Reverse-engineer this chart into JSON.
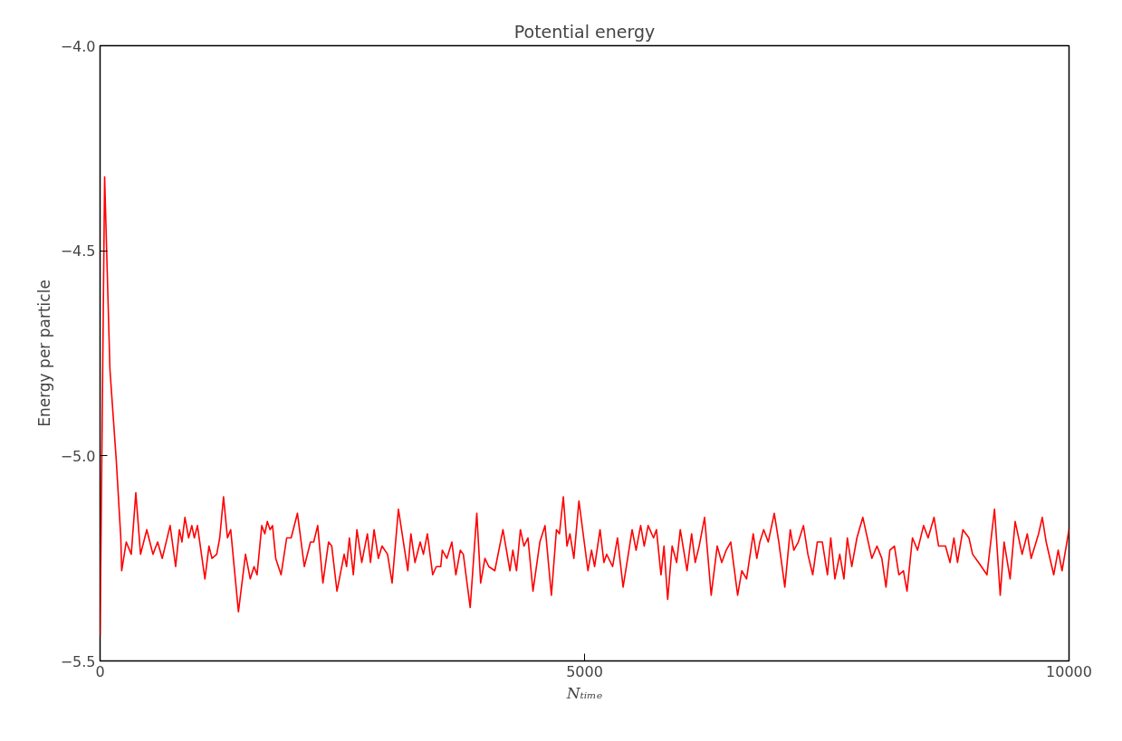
{
  "chart_data": {
    "type": "line",
    "title": "Potential energy",
    "xlabel": "Nₜᵢₘₑ",
    "ylabel": "Energy per particle",
    "xlim": [
      0,
      10000
    ],
    "ylim": [
      -5.5,
      -4.0
    ],
    "xticks": [
      0,
      5000,
      10000
    ],
    "yticks": [
      {
        "value": -5.5,
        "label": "−5.5"
      },
      {
        "value": -5.0,
        "label": "−5.0"
      },
      {
        "value": -4.5,
        "label": "−4.5"
      },
      {
        "value": -4.0,
        "label": "−4.0"
      }
    ],
    "grid": false,
    "line_style": "solid",
    "series": [
      {
        "color": "#ff0000",
        "x": [
          0,
          47,
          102,
          167,
          214,
          223,
          270,
          322,
          369,
          418,
          482,
          546,
          594,
          642,
          723,
          780,
          819,
          845,
          876,
          914,
          947,
          973,
          1005,
          1082,
          1124,
          1155,
          1204,
          1235,
          1274,
          1315,
          1348,
          1428,
          1501,
          1550,
          1589,
          1620,
          1669,
          1700,
          1726,
          1755,
          1780,
          1813,
          1868,
          1926,
          1972,
          2037,
          2108,
          2172,
          2205,
          2246,
          2300,
          2358,
          2391,
          2445,
          2519,
          2544,
          2573,
          2614,
          2651,
          2701,
          2759,
          2791,
          2828,
          2872,
          2910,
          2967,
          3014,
          3079,
          3176,
          3208,
          3250,
          3304,
          3337,
          3378,
          3433,
          3470,
          3516,
          3532,
          3579,
          3631,
          3672,
          3718,
          3749,
          3820,
          3888,
          3928,
          3972,
          4012,
          4074,
          4158,
          4230,
          4260,
          4298,
          4338,
          4375,
          4416,
          4468,
          4539,
          4592,
          4658,
          4710,
          4741,
          4781,
          4819,
          4849,
          4890,
          4942,
          5035,
          5072,
          5104,
          5160,
          5200,
          5228,
          5290,
          5340,
          5398,
          5445,
          5491,
          5532,
          5579,
          5616,
          5656,
          5712,
          5742,
          5789,
          5820,
          5858,
          5904,
          5951,
          5988,
          6058,
          6105,
          6142,
          6183,
          6239,
          6307,
          6369,
          6416,
          6462,
          6509,
          6580,
          6623,
          6672,
          6741,
          6778,
          6809,
          6849,
          6896,
          6958,
          7005,
          7067,
          7123,
          7160,
          7206,
          7259,
          7305,
          7355,
          7402,
          7454,
          7507,
          7541,
          7584,
          7634,
          7677,
          7712,
          7758,
          7811,
          7872,
          7965,
          8018,
          8068,
          8111,
          8151,
          8198,
          8244,
          8291,
          8328,
          8384,
          8437,
          8499,
          8546,
          8607,
          8654,
          8725,
          8772,
          8812,
          8849,
          8905,
          8967,
          9005,
          9067,
          9153,
          9231,
          9290,
          9330,
          9392,
          9444,
          9516,
          9569,
          9609,
          9686,
          9724,
          9764,
          9842,
          9888,
          9928,
          10000
        ],
        "values": [
          -5.44,
          -4.32,
          -4.79,
          -5.01,
          -5.2,
          -5.28,
          -5.21,
          -5.24,
          -5.09,
          -5.24,
          -5.18,
          -5.24,
          -5.21,
          -5.25,
          -5.17,
          -5.27,
          -5.18,
          -5.21,
          -5.15,
          -5.2,
          -5.17,
          -5.2,
          -5.17,
          -5.3,
          -5.22,
          -5.25,
          -5.24,
          -5.2,
          -5.1,
          -5.2,
          -5.18,
          -5.38,
          -5.24,
          -5.3,
          -5.27,
          -5.29,
          -5.17,
          -5.19,
          -5.16,
          -5.18,
          -5.17,
          -5.25,
          -5.29,
          -5.2,
          -5.2,
          -5.14,
          -5.27,
          -5.21,
          -5.21,
          -5.17,
          -5.31,
          -5.21,
          -5.22,
          -5.33,
          -5.24,
          -5.27,
          -5.2,
          -5.29,
          -5.18,
          -5.26,
          -5.19,
          -5.26,
          -5.18,
          -5.25,
          -5.22,
          -5.24,
          -5.31,
          -5.13,
          -5.28,
          -5.19,
          -5.26,
          -5.21,
          -5.24,
          -5.19,
          -5.29,
          -5.27,
          -5.27,
          -5.23,
          -5.25,
          -5.21,
          -5.29,
          -5.23,
          -5.24,
          -5.37,
          -5.14,
          -5.31,
          -5.25,
          -5.27,
          -5.28,
          -5.18,
          -5.28,
          -5.23,
          -5.28,
          -5.18,
          -5.22,
          -5.2,
          -5.33,
          -5.21,
          -5.17,
          -5.34,
          -5.18,
          -5.19,
          -5.1,
          -5.22,
          -5.19,
          -5.25,
          -5.11,
          -5.28,
          -5.23,
          -5.27,
          -5.18,
          -5.26,
          -5.24,
          -5.27,
          -5.2,
          -5.32,
          -5.25,
          -5.18,
          -5.23,
          -5.17,
          -5.22,
          -5.17,
          -5.2,
          -5.18,
          -5.29,
          -5.22,
          -5.35,
          -5.22,
          -5.26,
          -5.18,
          -5.28,
          -5.19,
          -5.26,
          -5.22,
          -5.15,
          -5.34,
          -5.22,
          -5.26,
          -5.23,
          -5.21,
          -5.34,
          -5.28,
          -5.3,
          -5.19,
          -5.25,
          -5.21,
          -5.18,
          -5.21,
          -5.14,
          -5.21,
          -5.32,
          -5.18,
          -5.23,
          -5.21,
          -5.17,
          -5.24,
          -5.29,
          -5.21,
          -5.21,
          -5.29,
          -5.2,
          -5.3,
          -5.24,
          -5.3,
          -5.2,
          -5.27,
          -5.2,
          -5.15,
          -5.25,
          -5.22,
          -5.25,
          -5.32,
          -5.23,
          -5.22,
          -5.29,
          -5.28,
          -5.33,
          -5.2,
          -5.23,
          -5.17,
          -5.2,
          -5.15,
          -5.22,
          -5.22,
          -5.26,
          -5.2,
          -5.26,
          -5.18,
          -5.2,
          -5.24,
          -5.26,
          -5.29,
          -5.13,
          -5.34,
          -5.21,
          -5.3,
          -5.16,
          -5.24,
          -5.19,
          -5.25,
          -5.19,
          -5.15,
          -5.21,
          -5.29,
          -5.23,
          -5.28,
          -5.18
        ]
      }
    ]
  }
}
